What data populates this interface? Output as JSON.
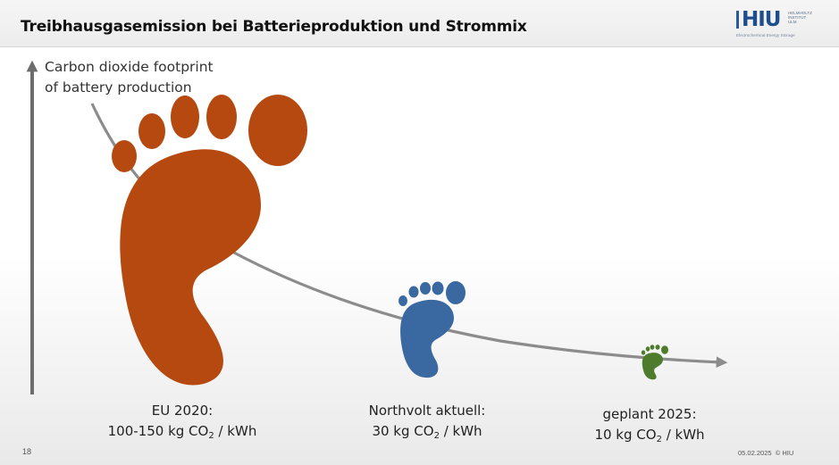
{
  "header": {
    "title": "Treibhausgasemission bei Batterieproduktion und Strommix",
    "logo": {
      "text": "HIU",
      "line1": "Helmholtz",
      "line2": "Institut",
      "line3": "Ulm",
      "tagline": "Electrochemical Energy Storage"
    }
  },
  "diagram": {
    "y_label_line1": "Carbon dioxide footprint",
    "y_label_line2": "of battery production",
    "footprints": [
      {
        "name": "EU 2020",
        "label": "EU 2020:",
        "value": "100-150 kg CO",
        "sub": "2",
        "unit": " / kWh",
        "color": "#b5490f"
      },
      {
        "name": "Northvolt aktuell",
        "label": "Northvolt aktuell:",
        "value": "30 kg CO",
        "sub": "2",
        "unit": " / kWh",
        "color": "#3a69a2"
      },
      {
        "name": "geplant 2025",
        "label": "geplant 2025:",
        "value": "10 kg CO",
        "sub": "2",
        "unit": " / kWh",
        "color": "#4e7b2c"
      }
    ],
    "curve_color": "#8c8c8c",
    "axis_color": "#6d6d6d"
  },
  "footer": {
    "slide_number": "18",
    "date": "05.02.2025",
    "copyright": "© HIU"
  }
}
